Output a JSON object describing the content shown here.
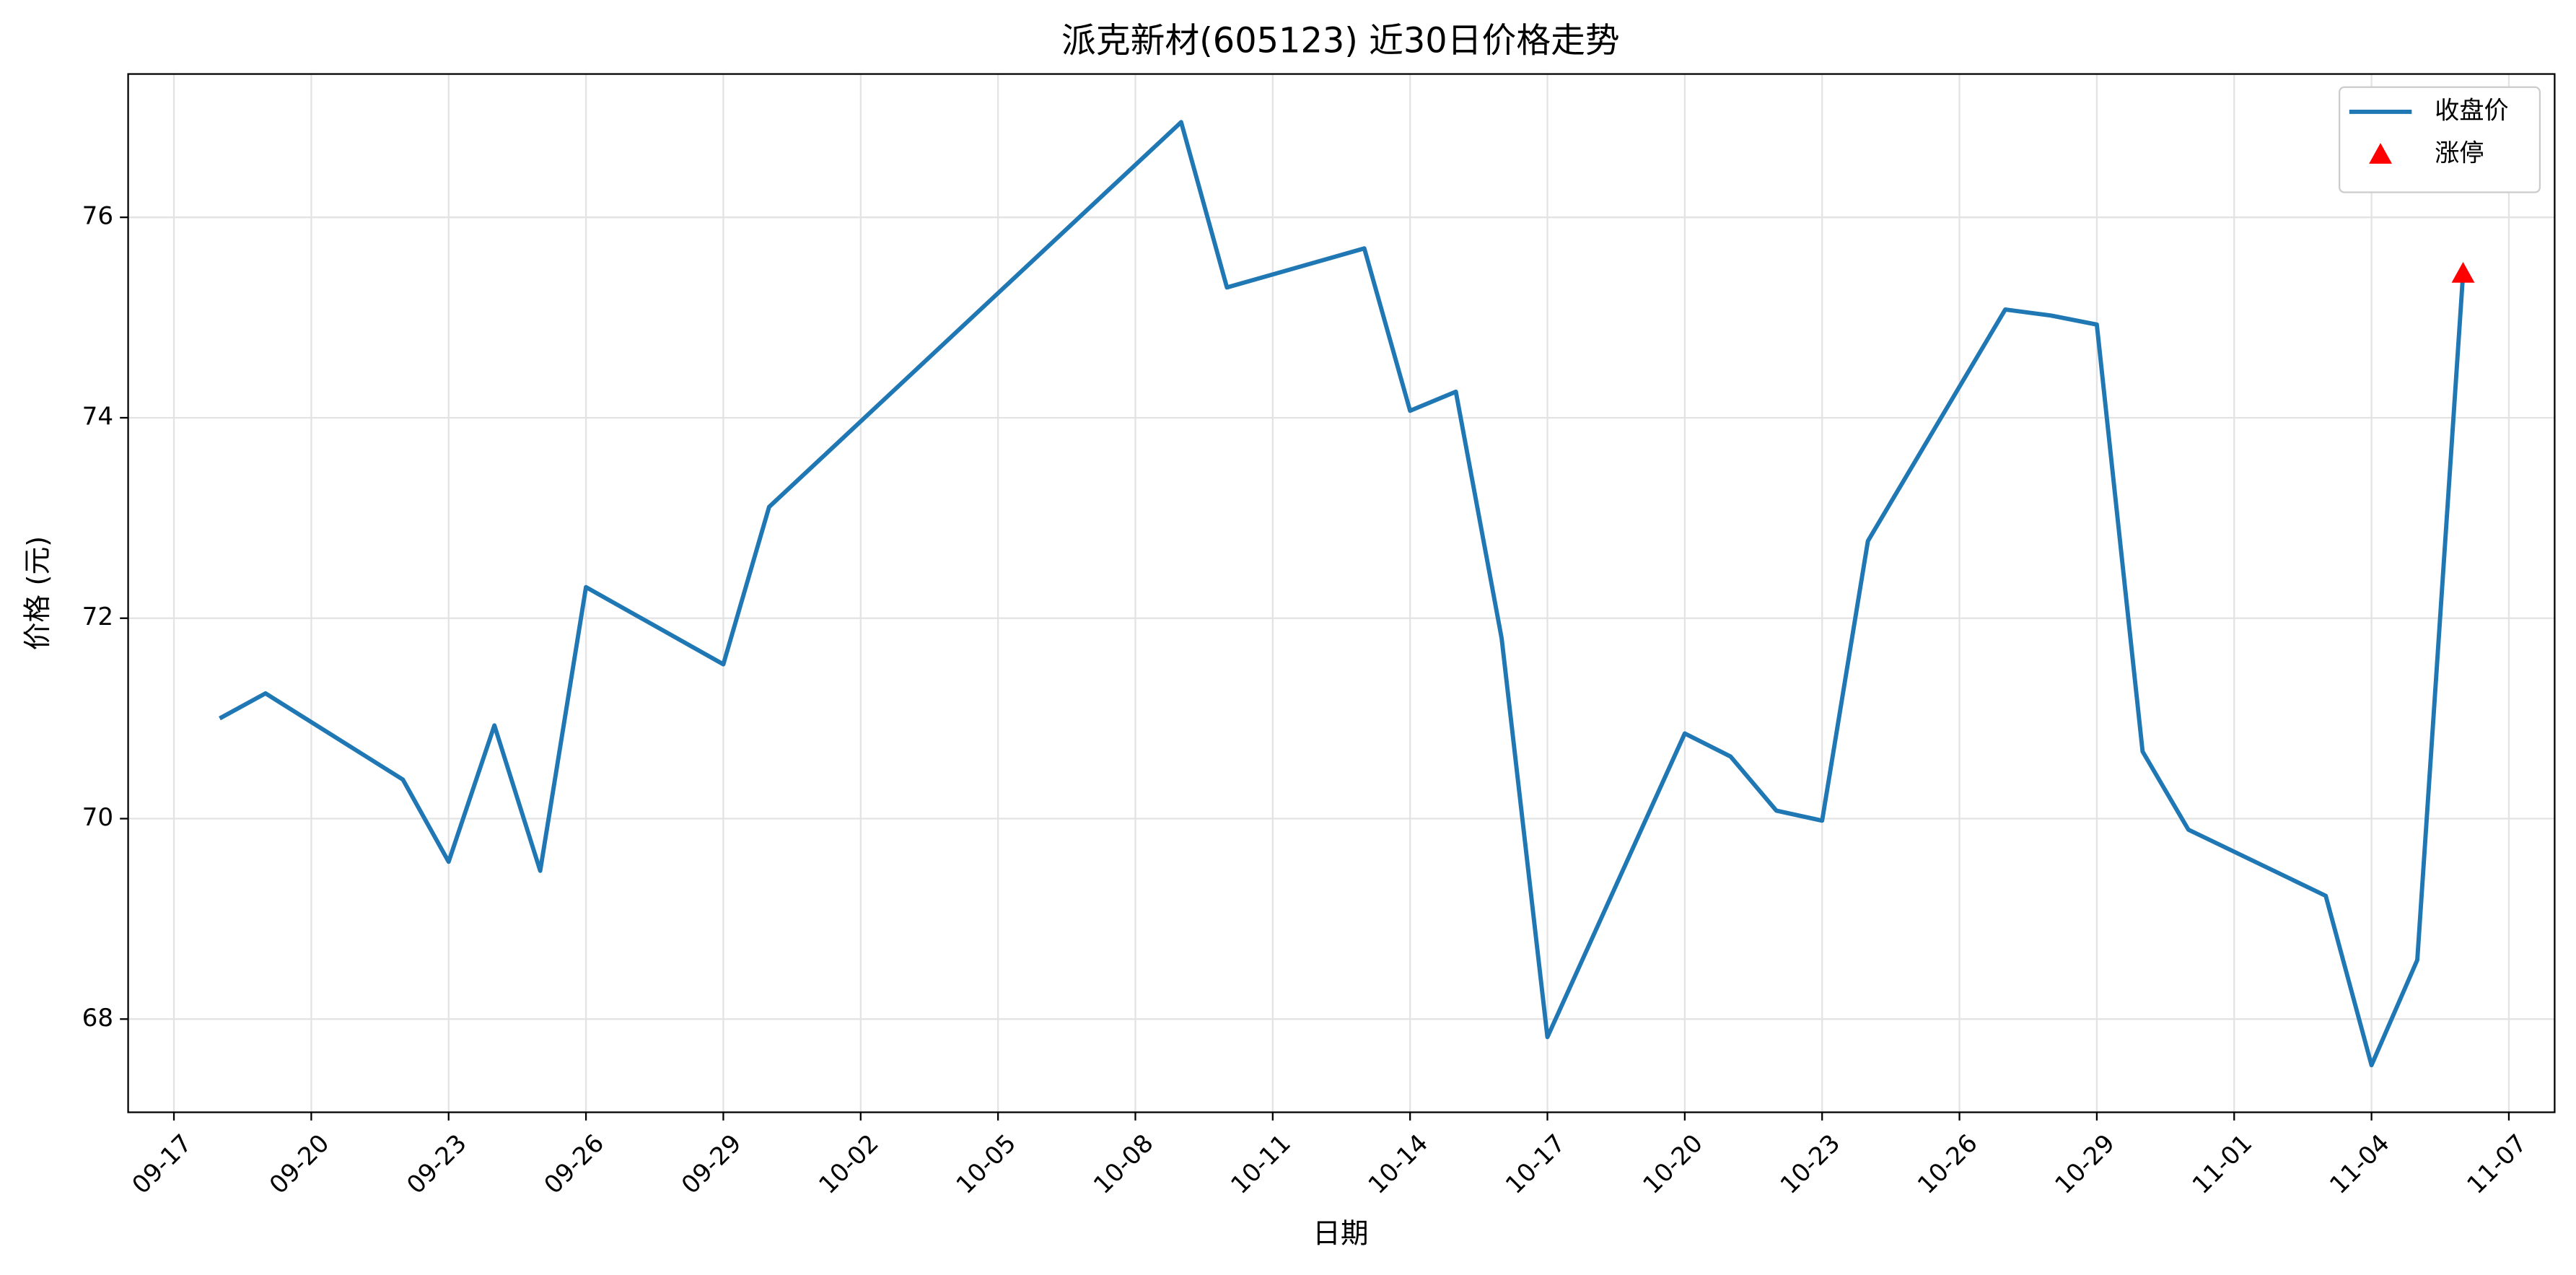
{
  "chart_data": {
    "type": "line",
    "title": "派克新材(605123) 近30日价格走势",
    "x_label": "日期",
    "y_label": "价格 (元)",
    "x": [
      "09-18",
      "09-19",
      "09-22",
      "09-23",
      "09-24",
      "09-25",
      "09-26",
      "09-29",
      "09-30",
      "10-09",
      "10-10",
      "10-13",
      "10-14",
      "10-15",
      "10-16",
      "10-17",
      "10-20",
      "10-21",
      "10-22",
      "10-23",
      "10-24",
      "10-27",
      "10-28",
      "10-29",
      "10-30",
      "10-31",
      "11-03",
      "11-04",
      "11-05",
      "11-06"
    ],
    "series": [
      {
        "name": "收盘价",
        "type": "line",
        "color": "#1f77b4",
        "x": [
          "09-18",
          "09-19",
          "09-22",
          "09-23",
          "09-24",
          "09-25",
          "09-26",
          "09-29",
          "09-30",
          "10-09",
          "10-10",
          "10-13",
          "10-14",
          "10-15",
          "10-16",
          "10-17",
          "10-20",
          "10-21",
          "10-22",
          "10-23",
          "10-24",
          "10-27",
          "10-28",
          "10-29",
          "10-30",
          "10-31",
          "11-03",
          "11-04",
          "11-05",
          "11-06"
        ],
        "values": [
          71.0,
          71.25,
          70.39,
          69.57,
          70.93,
          69.48,
          72.31,
          71.54,
          73.11,
          76.95,
          75.3,
          75.69,
          74.07,
          74.26,
          71.8,
          67.82,
          70.85,
          70.62,
          70.08,
          69.98,
          72.77,
          75.08,
          75.02,
          74.93,
          70.67,
          69.89,
          69.23,
          67.54,
          68.59,
          75.44
        ]
      },
      {
        "name": "涨停",
        "type": "scatter",
        "marker": "triangle",
        "color": "#ff0000",
        "x": [
          "11-06"
        ],
        "values": [
          75.44
        ]
      }
    ],
    "xlim": [
      "09-16",
      "11-08"
    ],
    "xticks": [
      "09-17",
      "09-20",
      "09-23",
      "09-26",
      "09-29",
      "10-02",
      "10-05",
      "10-08",
      "10-11",
      "10-14",
      "10-17",
      "10-20",
      "10-23",
      "10-26",
      "10-29",
      "11-01",
      "11-04",
      "11-07"
    ],
    "ylim": [
      67.07,
      77.43
    ],
    "yticks": [
      68,
      70,
      72,
      74,
      76
    ],
    "grid": true,
    "legend": "upper right"
  }
}
